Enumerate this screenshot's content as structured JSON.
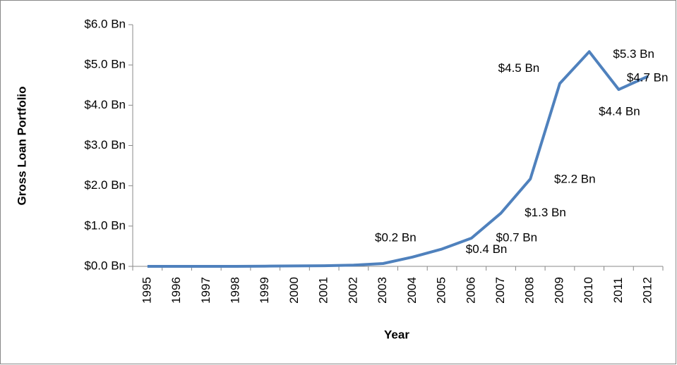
{
  "chart_data": {
    "type": "line",
    "x_label": "Year",
    "y_label": "Gross Loan Portfolio",
    "categories": [
      "1995",
      "1996",
      "1997",
      "1998",
      "1999",
      "2000",
      "2001",
      "2002",
      "2003",
      "2004",
      "2005",
      "2006",
      "2007",
      "2008",
      "2009",
      "2010",
      "2011",
      "2012"
    ],
    "series": [
      {
        "name": "Gross Loan Portfolio",
        "color": "#4f81bd",
        "values": [
          0,
          0,
          0,
          0,
          0.005,
          0.01,
          0.015,
          0.03,
          0.07,
          0.23,
          0.43,
          0.7,
          1.32,
          2.17,
          4.54,
          5.33,
          4.39,
          4.72
        ],
        "value_labels": [
          null,
          null,
          null,
          null,
          null,
          null,
          null,
          null,
          null,
          "$0.2 Bn",
          "$0.4 Bn",
          "$0.7 Bn",
          "$1.3 Bn",
          "$2.2 Bn",
          "$4.5 Bn",
          "$5.3 Bn",
          "$4.4 Bn",
          "$4.7 Bn"
        ]
      }
    ],
    "ylim": [
      0,
      6
    ],
    "yticks": [
      {
        "value": 0,
        "label": "$0.0 Bn"
      },
      {
        "value": 1,
        "label": "$1.0 Bn"
      },
      {
        "value": 2,
        "label": "$2.0 Bn"
      },
      {
        "value": 3,
        "label": "$3.0 Bn"
      },
      {
        "value": 4,
        "label": "$4.0 Bn"
      },
      {
        "value": 5,
        "label": "$5.0 Bn"
      },
      {
        "value": 6,
        "label": "$6.0 Bn"
      }
    ],
    "grid": false
  }
}
